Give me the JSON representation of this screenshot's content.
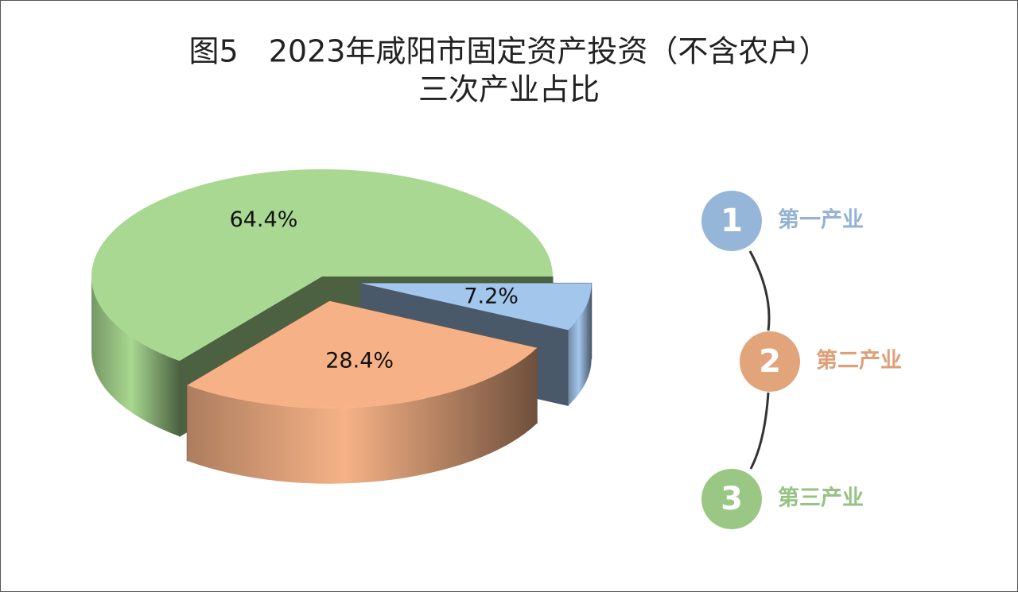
{
  "chart_data": {
    "type": "pie3d",
    "title": "图5　2023年咸阳市固定资产投资（不含农户）",
    "subtitle": "三次产业占比",
    "categories": [
      "第一产业",
      "第二产业",
      "第三产业"
    ],
    "legend_numbers": [
      "1",
      "2",
      "3"
    ],
    "series": [
      {
        "name": "占比",
        "colors": [
          "#a3c6ec",
          "#f6b286",
          "#a8d891"
        ],
        "values": [
          7.2,
          28.4,
          64.4
        ],
        "value_labels": [
          "7.2%",
          "28.4%",
          "64.4%"
        ]
      }
    ]
  }
}
